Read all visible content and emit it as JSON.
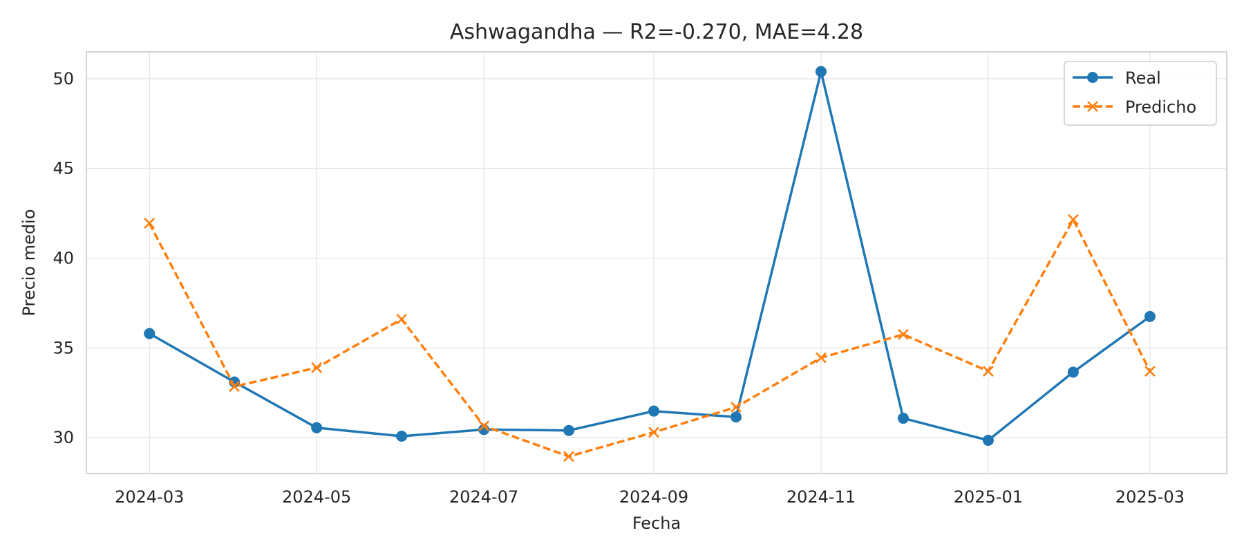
{
  "chart_data": {
    "type": "line",
    "title": "Ashwagandha — R2=-0.270, MAE=4.28",
    "xlabel": "Fecha",
    "ylabel": "Precio medio",
    "x": [
      "2024-03-01",
      "2024-04-01",
      "2024-05-01",
      "2024-06-01",
      "2024-07-01",
      "2024-08-01",
      "2024-09-01",
      "2024-10-01",
      "2024-11-01",
      "2024-12-01",
      "2025-01-01",
      "2025-02-01",
      "2025-03-01"
    ],
    "xticks": [
      "2024-03",
      "2024-05",
      "2024-07",
      "2024-09",
      "2024-11",
      "2025-01",
      "2025-03"
    ],
    "yticks": [
      30,
      35,
      40,
      45,
      50
    ],
    "ylim": [
      28,
      51.5
    ],
    "xlim": [
      "2024-02-07",
      "2025-03-29"
    ],
    "grid": true,
    "legend_position": "top-right",
    "series": [
      {
        "name": "Real",
        "color": "#1f77b4",
        "line_style": "solid",
        "marker": "circle",
        "values": [
          35.8,
          33.1,
          30.55,
          30.08,
          30.45,
          30.4,
          31.48,
          31.15,
          50.4,
          31.08,
          29.85,
          33.65,
          36.75
        ]
      },
      {
        "name": "Predicho",
        "color": "#ff7f0e",
        "line_style": "dashed",
        "marker": "x",
        "values": [
          41.95,
          32.85,
          33.9,
          36.6,
          30.65,
          28.95,
          30.3,
          31.7,
          34.45,
          35.75,
          33.7,
          42.15,
          33.7
        ]
      }
    ]
  }
}
